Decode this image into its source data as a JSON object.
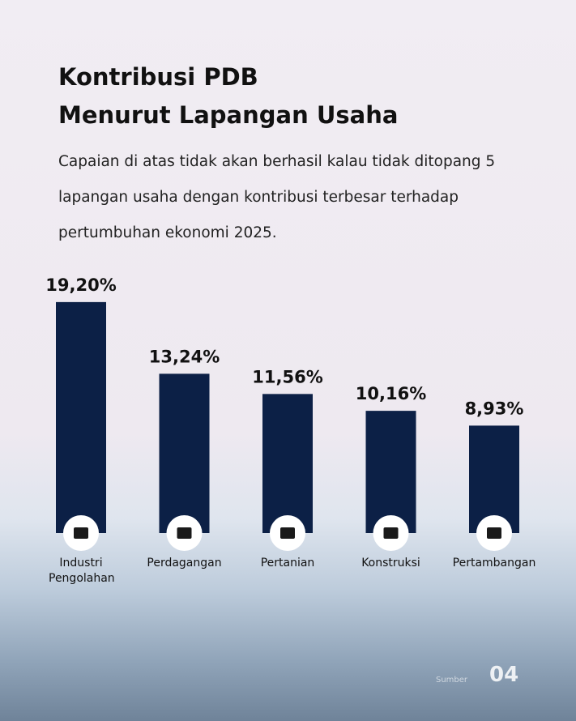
{
  "chart_data": {
    "type": "bar",
    "title": [
      "Kontribusi PDB",
      "Menurut Lapangan Usaha"
    ],
    "subtitle": "Capaian di atas tidak akan berhasil kalau tidak ditopang 5 lapangan usaha dengan kontribusi terbesar terhadap pertumbuhan ekonomi 2025.",
    "categories": [
      "Industri Pengolahan",
      "Perdagangan",
      "Pertanian",
      "Konstruksi",
      "Pertambangan"
    ],
    "values": [
      19.2,
      13.24,
      11.56,
      10.16,
      8.93
    ],
    "value_labels": [
      "19,20%",
      "13,24%",
      "11,56%",
      "10,16%",
      "8,93%"
    ],
    "color": "#0c2046",
    "source": "Sumber",
    "page_number": "04"
  }
}
